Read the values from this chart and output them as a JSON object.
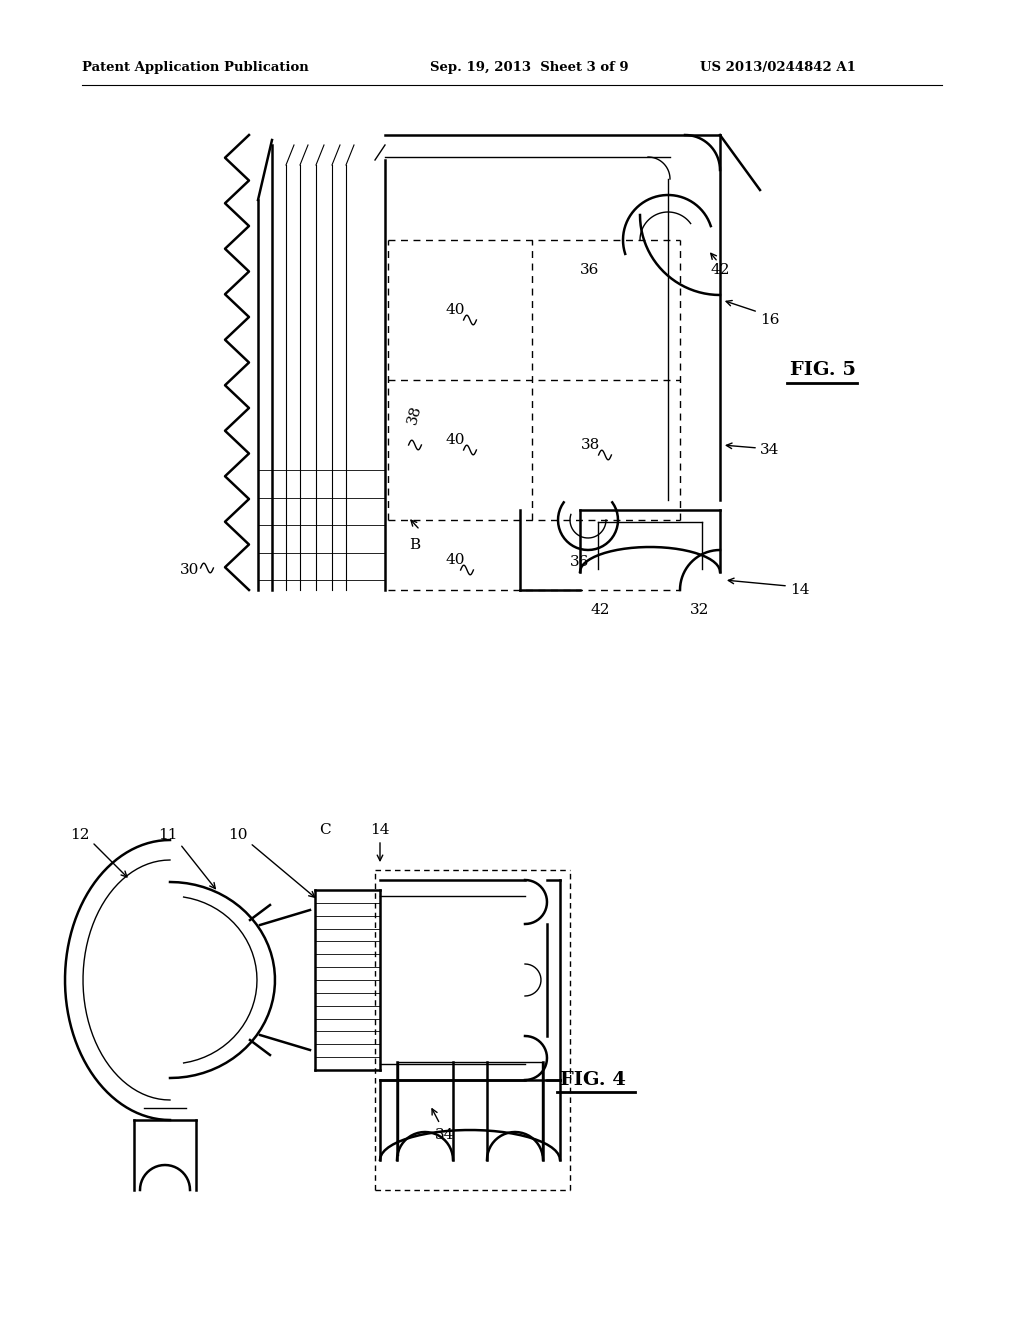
{
  "title_left": "Patent Application Publication",
  "title_center": "Sep. 19, 2013  Sheet 3 of 9",
  "title_right": "US 2013/0244842 A1",
  "fig4_label": "FIG. 4",
  "fig5_label": "FIG. 5",
  "background_color": "#ffffff",
  "line_color": "#000000",
  "lw_main": 1.8,
  "lw_thin": 1.0,
  "lw_thick": 2.5
}
